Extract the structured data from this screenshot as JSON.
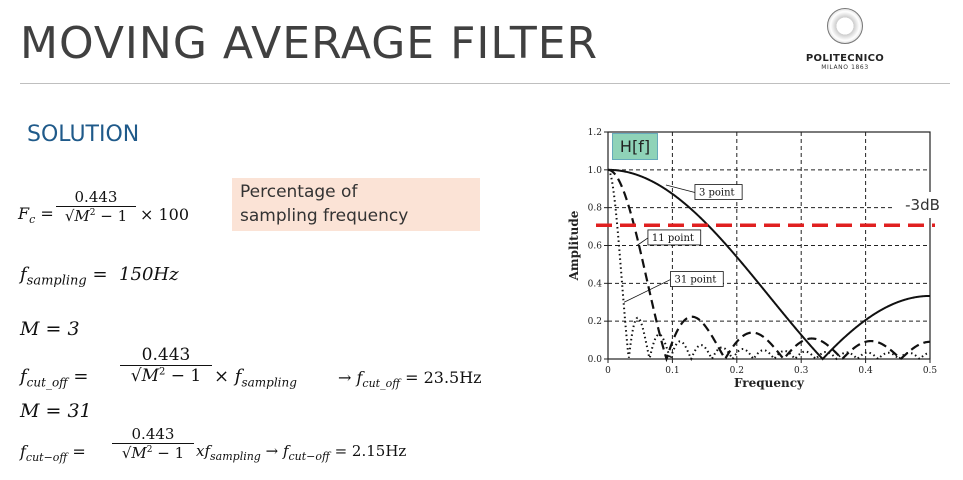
{
  "slide": {
    "title": "MOVING AVERAGE FILTER",
    "subtitle": "SOLUTION",
    "logo": {
      "name": "POLITECNICO",
      "sub": "MILANO 1863"
    },
    "note": {
      "line1": "Percentage of",
      "line2": "sampling frequency"
    },
    "hf_label": "H[f]",
    "db_label": "-3dB"
  },
  "formulas": {
    "fc_lhs": "F",
    "fc_sub": "c",
    "eq": "=",
    "num": "0.443",
    "den_root": "√",
    "den_m": "M",
    "den_sq": "2",
    "den_rest": " − 1",
    "times100": "× 100",
    "fs_lhs": "f",
    "fs_sub": "sampling",
    "fs_val": "150Hz",
    "m1": "M  =  3",
    "fco_lhs": "f",
    "fco_sub": "cut_off",
    "times_fs": "× f",
    "times_fs_sub": "sampling",
    "arrow1": "→ f",
    "arrow1_sub": "cut_off",
    "result1": " = 23.5Hz",
    "m2": "M  = 31",
    "fco2_sub": "cut−off",
    "x_fs": "xf",
    "x_fs_sub": "sampling",
    "arrow2": " → f",
    "arrow2_sub": "cut−off",
    "result2": " = 2.15Hz"
  },
  "chart_data": {
    "type": "line",
    "title": "",
    "xlabel": "Frequency",
    "ylabel": "Amplitude",
    "xlim": [
      0,
      0.5
    ],
    "ylim": [
      0,
      1.2
    ],
    "xticks": [
      "0",
      "0.1",
      "0.2",
      "0.3",
      "0.4",
      "0.5"
    ],
    "yticks": [
      "0.0",
      "0.2",
      "0.4",
      "0.6",
      "0.8",
      "1.0",
      "1.2"
    ],
    "grid": true,
    "series": [
      {
        "name": "3 point",
        "M": 3,
        "style": "solid"
      },
      {
        "name": "11 point",
        "M": 11,
        "style": "dashed"
      },
      {
        "name": "31 point",
        "M": 31,
        "style": "dotted"
      }
    ],
    "annotation_line": {
      "label": "-3dB",
      "y": 0.707,
      "color": "#e02020"
    }
  }
}
